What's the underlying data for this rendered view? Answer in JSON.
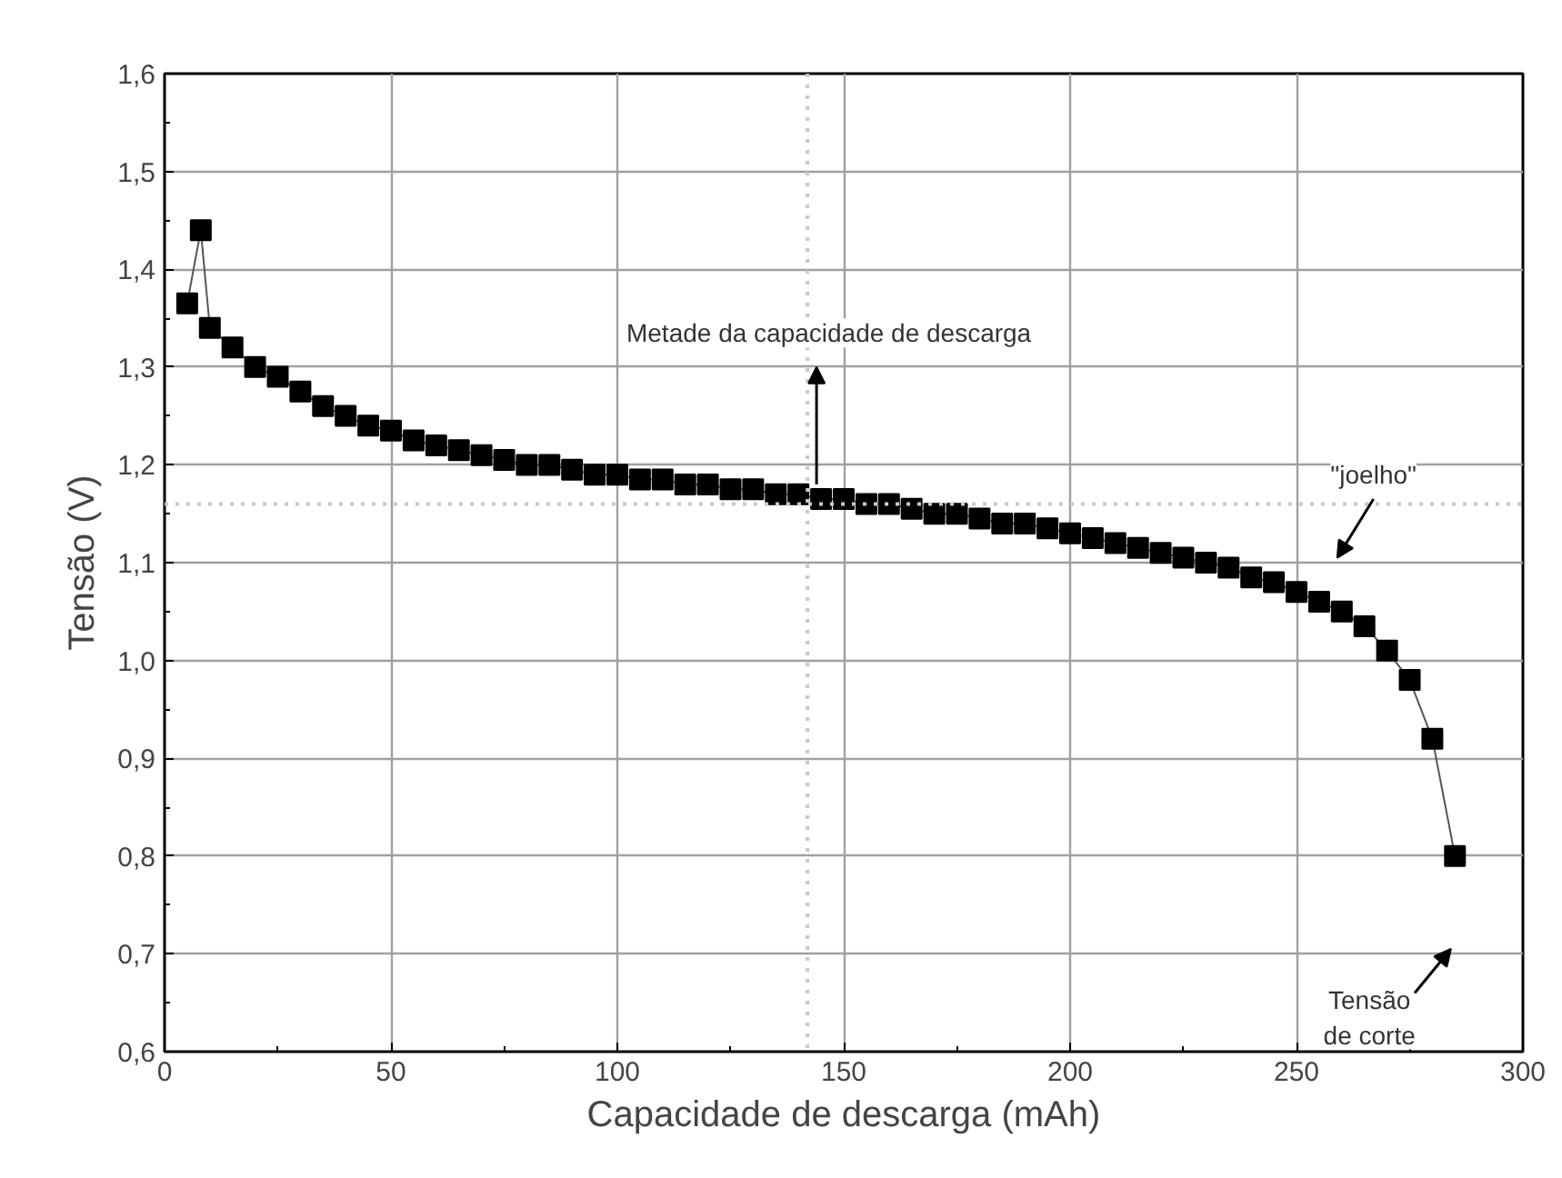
{
  "chart_data": {
    "type": "line",
    "xlabel": "Capacidade de descarga (mAh)",
    "ylabel": "Tensão (V)",
    "x": [
      5,
      8,
      10,
      15,
      20,
      25,
      30,
      35,
      40,
      45,
      50,
      55,
      60,
      65,
      70,
      75,
      80,
      85,
      90,
      95,
      100,
      105,
      110,
      115,
      120,
      125,
      130,
      135,
      140,
      145,
      150,
      155,
      160,
      165,
      170,
      175,
      180,
      185,
      190,
      195,
      200,
      205,
      210,
      215,
      220,
      225,
      230,
      235,
      240,
      245,
      250,
      255,
      260,
      265,
      270,
      275,
      280,
      285
    ],
    "series": [
      {
        "color": "#000000",
        "values": [
          1.365,
          1.44,
          1.34,
          1.32,
          1.3,
          1.29,
          1.275,
          1.26,
          1.25,
          1.24,
          1.235,
          1.225,
          1.22,
          1.215,
          1.21,
          1.205,
          1.2,
          1.2,
          1.195,
          1.19,
          1.19,
          1.185,
          1.185,
          1.18,
          1.18,
          1.175,
          1.175,
          1.17,
          1.17,
          1.165,
          1.165,
          1.16,
          1.16,
          1.155,
          1.15,
          1.15,
          1.145,
          1.14,
          1.14,
          1.135,
          1.13,
          1.125,
          1.12,
          1.115,
          1.11,
          1.105,
          1.1,
          1.095,
          1.085,
          1.08,
          1.07,
          1.06,
          1.05,
          1.035,
          1.01,
          0.98,
          0.92,
          0.8
        ]
      }
    ],
    "marker": "square",
    "line_style": "solid",
    "grid": true,
    "xlim": [
      0,
      300
    ],
    "xticks": [
      0,
      50,
      100,
      150,
      200,
      250,
      300
    ],
    "ylim": [
      0.6,
      1.6
    ],
    "yticks": [
      {
        "value": 0.6,
        "label": "0,6"
      },
      {
        "value": 0.7,
        "label": "0,7"
      },
      {
        "value": 0.8,
        "label": "0,8"
      },
      {
        "value": 0.9,
        "label": "0,9"
      },
      {
        "value": 1.0,
        "label": "1,0"
      },
      {
        "value": 1.1,
        "label": "1,1"
      },
      {
        "value": 1.2,
        "label": "1,2"
      },
      {
        "value": 1.3,
        "label": "1,3"
      },
      {
        "value": 1.4,
        "label": "1,4"
      },
      {
        "value": 1.5,
        "label": "1,5"
      },
      {
        "value": 1.6,
        "label": "1,6"
      }
    ],
    "ref_lines": [
      {
        "axis": "y",
        "value": 1.16,
        "color": "#c8c8c8",
        "line_style": "dotted"
      },
      {
        "axis": "x",
        "value": 142,
        "color": "#c8c8c8",
        "line_style": "dotted"
      }
    ],
    "annotations": [
      "Metade da capacidade de descarga",
      "\"joelho\"",
      "Tensão\nde corte"
    ]
  }
}
